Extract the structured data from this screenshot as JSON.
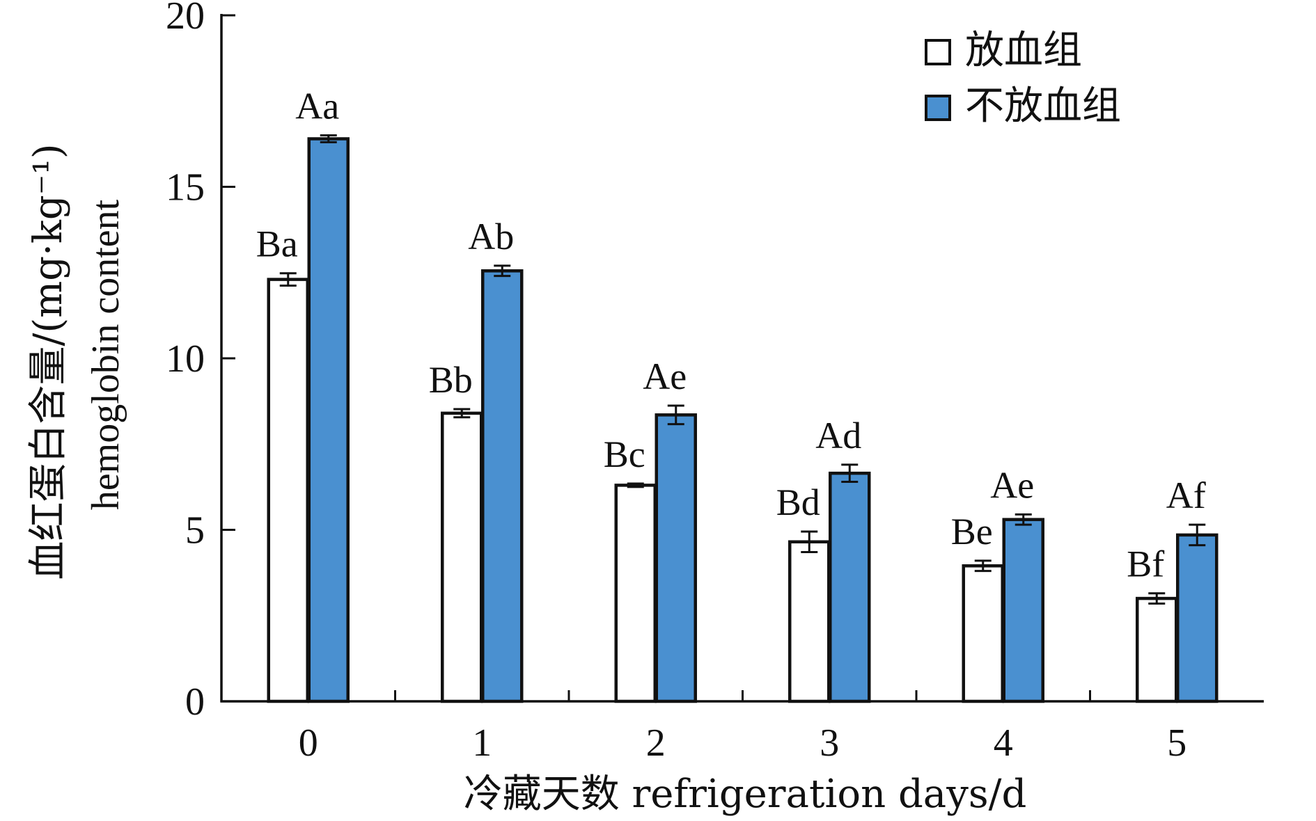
{
  "chart_data": {
    "type": "bar",
    "categories": [
      "0",
      "1",
      "2",
      "3",
      "4",
      "5"
    ],
    "xlabel": "冷藏天数 refrigeration days/d",
    "ylabel_line1": "血红蛋白含量/(mg·kg⁻¹)",
    "ylabel_line2": "hemoglobin content",
    "ylim": [
      0,
      20
    ],
    "yticks": [
      0,
      5,
      10,
      15,
      20
    ],
    "grid": false,
    "legend_position": "top-right",
    "series": [
      {
        "name": "放血组",
        "color": "#ffffff",
        "values": [
          12.3,
          8.4,
          6.3,
          4.65,
          3.95,
          3.0
        ],
        "errors": [
          0.18,
          0.12,
          0.05,
          0.3,
          0.15,
          0.15
        ],
        "labels": [
          "Ba",
          "Bb",
          "Bc",
          "Bd",
          "Be",
          "Bf"
        ]
      },
      {
        "name": "不放血组",
        "color": "#4a90d0",
        "values": [
          16.4,
          12.55,
          8.35,
          6.65,
          5.3,
          4.85
        ],
        "errors": [
          0.1,
          0.15,
          0.27,
          0.25,
          0.15,
          0.3
        ],
        "labels": [
          "Aa",
          "Ab",
          "Ae",
          "Ad",
          "Ae",
          "Af"
        ]
      }
    ]
  }
}
